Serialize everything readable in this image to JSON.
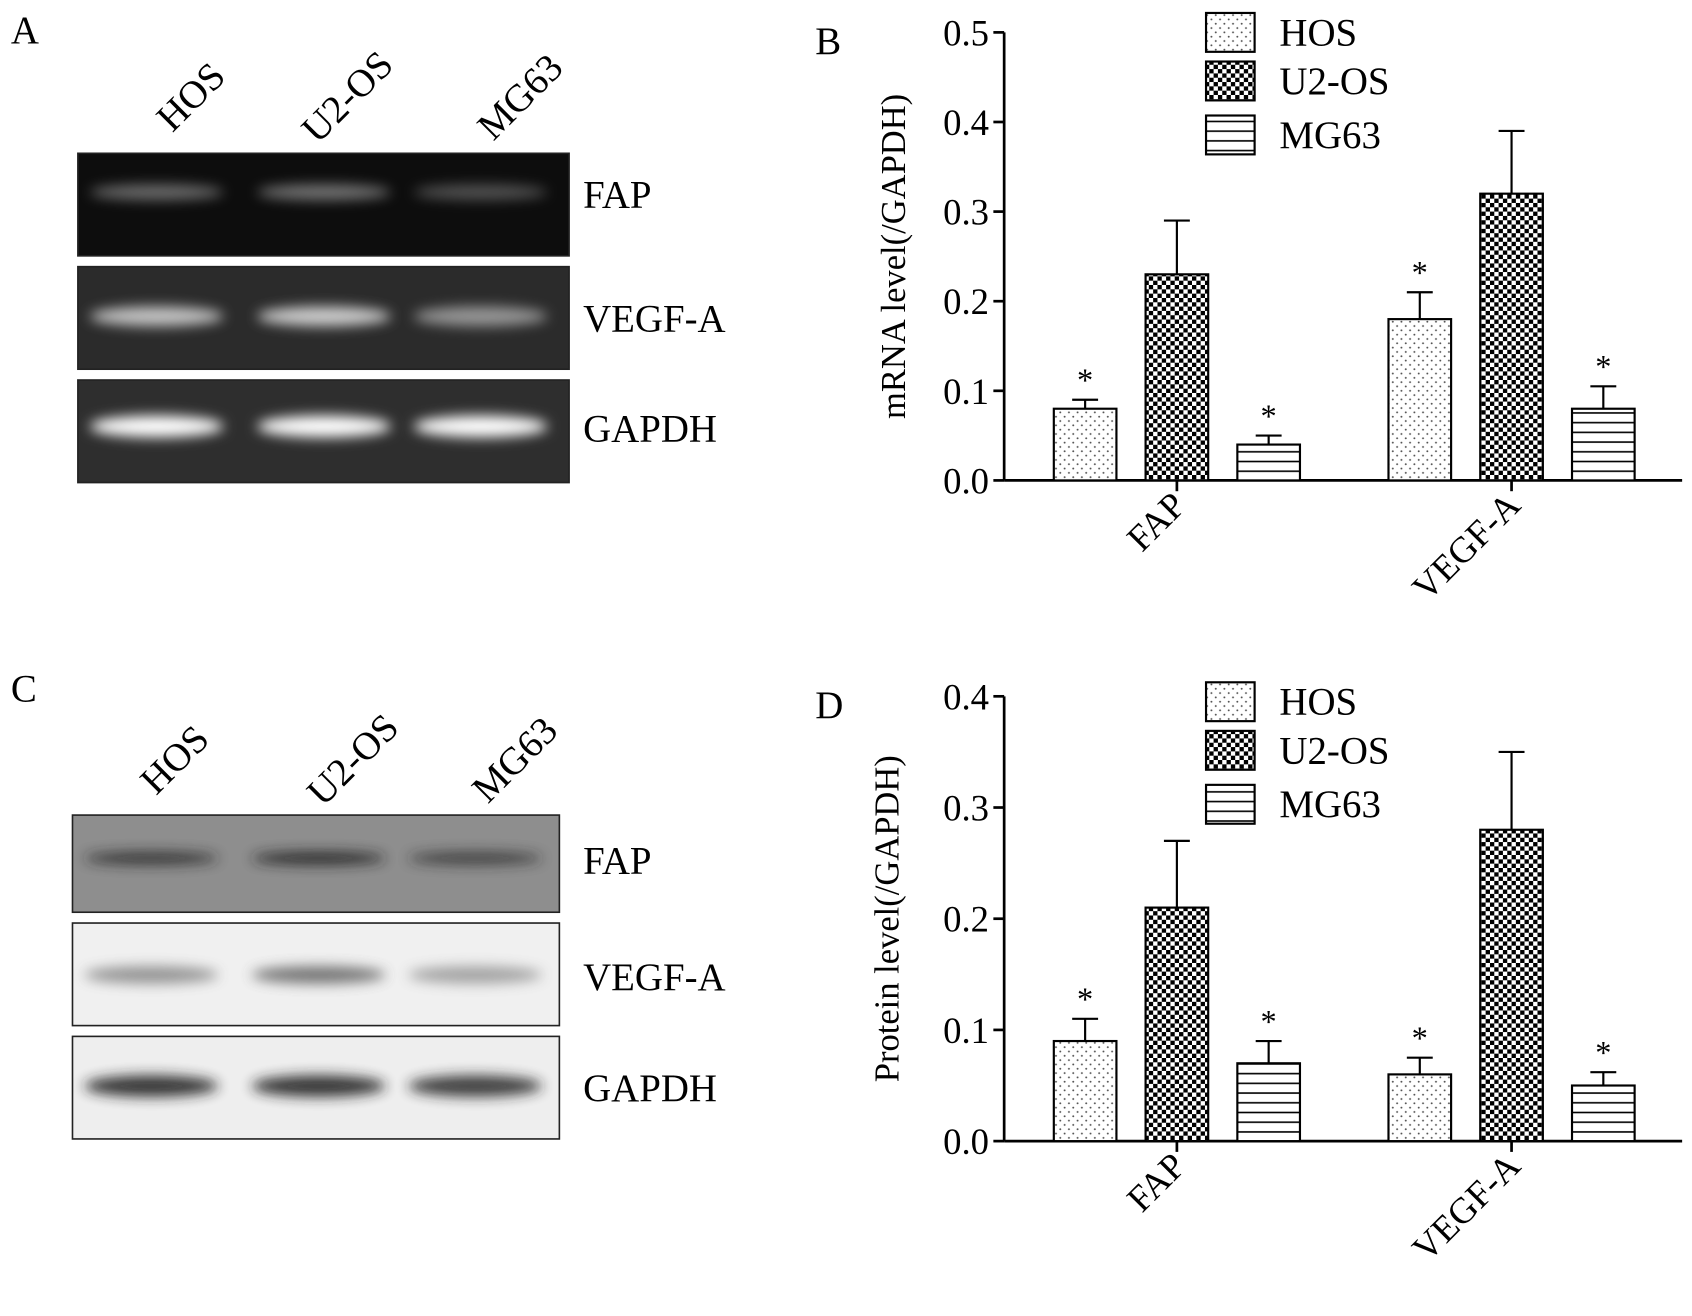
{
  "gels": [
    {
      "label": "A",
      "lanes": [
        "HOS",
        "U2-OS",
        "MG63"
      ],
      "bands": [
        "FAP",
        "VEGF-A",
        "GAPDH"
      ]
    },
    {
      "label": "C",
      "lanes": [
        "HOS",
        "U2-OS",
        "MG63"
      ],
      "bands": [
        "FAP",
        "VEGF-A",
        "GAPDH"
      ]
    }
  ],
  "chart_data": [
    {
      "type": "bar",
      "panel_label": "B",
      "ylabel": "mRNA level(/GAPDH)",
      "categories": [
        "FAP",
        "VEGF-A"
      ],
      "series": [
        {
          "name": "HOS",
          "color": "#000000",
          "pattern": "dots",
          "values": [
            0.08,
            0.18
          ],
          "errors": [
            0.01,
            0.03
          ],
          "labels": [
            "*",
            "*"
          ]
        },
        {
          "name": "U2-OS",
          "color": "#000000",
          "pattern": "checker",
          "values": [
            0.23,
            0.32
          ],
          "errors": [
            0.06,
            0.07
          ]
        },
        {
          "name": "MG63",
          "color": "#000000",
          "pattern": "hlines",
          "values": [
            0.04,
            0.08
          ],
          "errors": [
            0.01,
            0.025
          ],
          "labels": [
            "*",
            "*"
          ]
        }
      ],
      "ylim": [
        0,
        0.5
      ],
      "yticks": [
        {
          "value": 0,
          "label": "0.0"
        },
        0.1,
        0.2,
        0.3,
        0.4,
        0.5
      ]
    },
    {
      "type": "bar",
      "panel_label": "D",
      "ylabel": "Protein level(/GAPDH)",
      "categories": [
        "FAP",
        "VEGF-A"
      ],
      "series": [
        {
          "name": "HOS",
          "color": "#000000",
          "pattern": "dots",
          "values": [
            0.09,
            0.06
          ],
          "errors": [
            0.02,
            0.015
          ],
          "labels": [
            "*",
            "*"
          ]
        },
        {
          "name": "U2-OS",
          "color": "#000000",
          "pattern": "checker",
          "values": [
            0.21,
            0.28
          ],
          "errors": [
            0.06,
            0.07
          ]
        },
        {
          "name": "MG63",
          "color": "#000000",
          "pattern": "hlines",
          "values": [
            0.07,
            0.05
          ],
          "errors": [
            0.02,
            0.012
          ],
          "labels": [
            "*",
            "*"
          ]
        }
      ],
      "ylim": [
        0,
        0.4
      ],
      "yticks": [
        {
          "value": 0,
          "label": "0.0"
        },
        0.1,
        0.2,
        0.3,
        0.4
      ]
    }
  ]
}
